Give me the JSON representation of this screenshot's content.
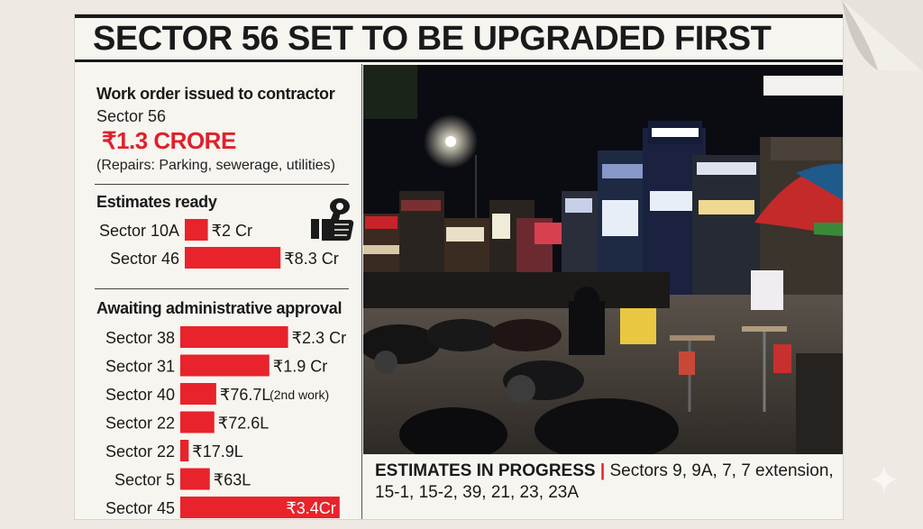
{
  "headline": "SECTOR 56 SET TO BE UPGRADED FIRST",
  "work_order": {
    "title": "Work order issued to contractor",
    "sector": "Sector 56",
    "amount": "₹1.3 CRORE",
    "note": "(Repairs: Parking, sewerage, utilities)"
  },
  "bottom": {
    "lead": "ESTIMATES IN PROGRESS",
    "separator": "|",
    "text": " Sectors 9, 9A, 7, 7 extension, 15-1, 15-2, 39, 21, 23, 23A"
  },
  "colors": {
    "bar": "#e8232b",
    "text": "#1a1a1a"
  },
  "icons": [
    "thumbs-up-money-icon",
    "page-curl-icon",
    "sparkle-watermark-icon"
  ],
  "chart_data": [
    {
      "type": "bar",
      "orientation": "horizontal",
      "title": "Estimates ready",
      "unit": "₹ lakh",
      "categories": [
        "Sector 10A",
        "Sector 46"
      ],
      "values": [
        200,
        830
      ],
      "data_labels": [
        "₹2 Cr",
        "₹8.3 Cr"
      ],
      "notes": [
        "",
        ""
      ]
    },
    {
      "type": "bar",
      "orientation": "horizontal",
      "title": "Awaiting administrative approval",
      "unit": "₹ lakh",
      "categories": [
        "Sector 38",
        "Sector 31",
        "Sector 40",
        "Sector 22",
        "Sector 22",
        "Sector 5",
        "Sector 45"
      ],
      "values": [
        230,
        190,
        76.7,
        72.6,
        17.9,
        63,
        340
      ],
      "data_labels": [
        "₹2.3 Cr",
        "₹1.9 Cr",
        "₹76.7L",
        "₹72.6L",
        "₹17.9L",
        "₹63L",
        "₹3.4Cr"
      ],
      "notes": [
        "",
        "",
        "(2nd work)",
        "",
        "",
        "",
        ""
      ],
      "label_inside": [
        false,
        false,
        false,
        false,
        false,
        false,
        true
      ]
    }
  ]
}
